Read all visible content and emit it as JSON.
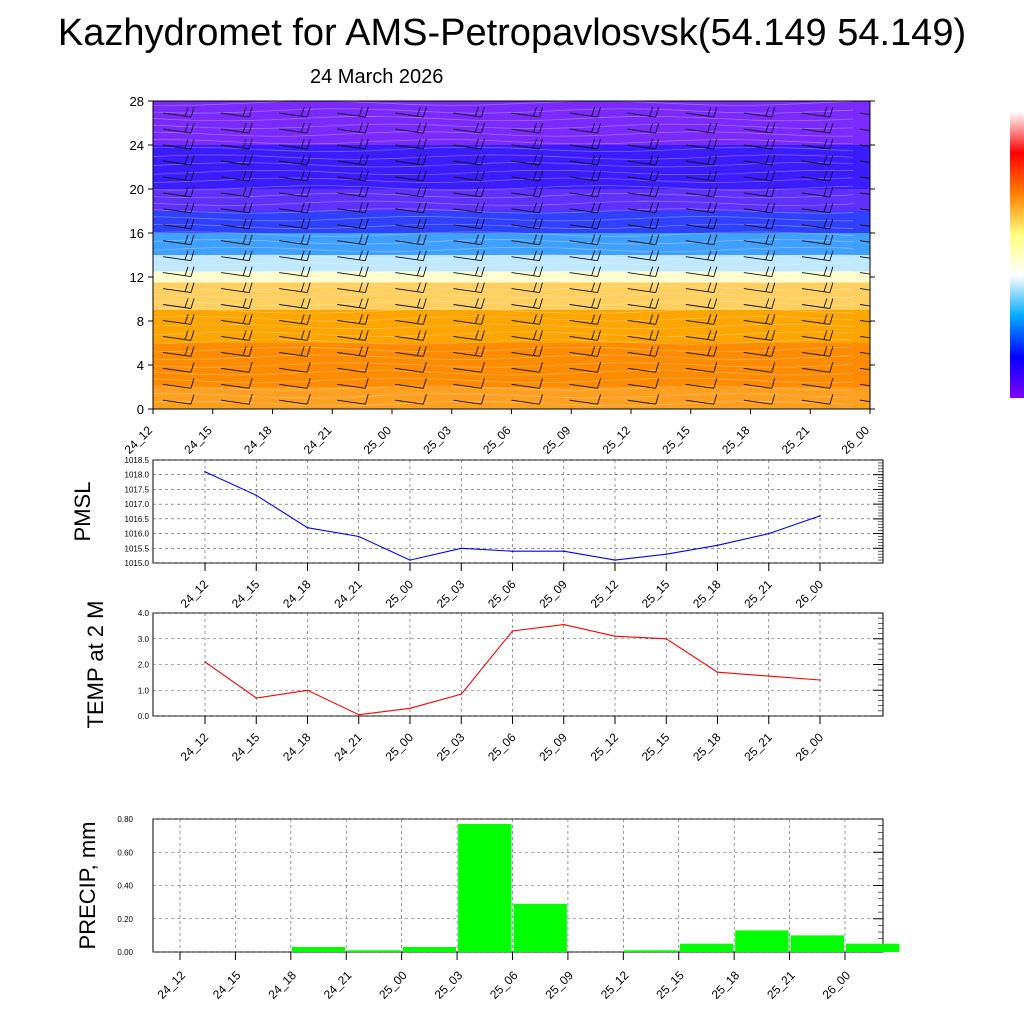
{
  "title": "Kazhydromet for AMS-Petropavlosvsk(54.149 54.149)",
  "subtitle": "24 March 2026",
  "chart_data": [
    {
      "type": "heatmap",
      "name": "meteogram-cross-section",
      "x": [
        "24_12",
        "24_15",
        "24_18",
        "24_21",
        "25_00",
        "25_03",
        "25_06",
        "25_09",
        "25_12",
        "25_15",
        "25_18",
        "25_21",
        "26_00"
      ],
      "y_ticks": [
        0,
        4,
        8,
        12,
        16,
        20,
        24,
        28
      ],
      "ylim": [
        0,
        28
      ],
      "colorbar": [
        "#ffffff",
        "#ff0000",
        "#ff8000",
        "#ffff80",
        "#ffffff",
        "#00aaff",
        "#0000ff",
        "#8000ff"
      ],
      "bands": [
        {
          "y0": 0,
          "y1": 2,
          "color": "#ffa020"
        },
        {
          "y0": 2,
          "y1": 6,
          "color": "#ff8c00"
        },
        {
          "y0": 6,
          "y1": 9,
          "color": "#ffa500"
        },
        {
          "y0": 9,
          "y1": 11.5,
          "color": "#ffd060"
        },
        {
          "y0": 11.5,
          "y1": 12.5,
          "color": "#ffffd0"
        },
        {
          "y0": 12.5,
          "y1": 14,
          "color": "#c0e8ff"
        },
        {
          "y0": 14,
          "y1": 16,
          "color": "#40a0ff"
        },
        {
          "y0": 16,
          "y1": 18,
          "color": "#3040ff"
        },
        {
          "y0": 18,
          "y1": 20,
          "color": "#6030ff"
        },
        {
          "y0": 20,
          "y1": 24,
          "color": "#3a1cff"
        },
        {
          "y0": 24,
          "y1": 28,
          "color": "#7a2aff"
        }
      ],
      "wind_barbs": true
    },
    {
      "type": "line",
      "name": "pmsl",
      "ylabel": "PMSL",
      "x": [
        "24_12",
        "24_15",
        "24_18",
        "24_21",
        "25_00",
        "25_03",
        "25_06",
        "25_09",
        "25_12",
        "25_15",
        "25_18",
        "25_21",
        "26_00"
      ],
      "values": [
        1018.1,
        1017.3,
        1016.2,
        1015.9,
        1015.1,
        1015.5,
        1015.4,
        1015.4,
        1015.1,
        1015.3,
        1015.6,
        1016.0,
        1016.6
      ],
      "ylim": [
        1015.0,
        1018.5
      ],
      "y_ticks": [
        "1015.0",
        "1015.5",
        "1016.0",
        "1016.5",
        "1017.0",
        "1017.5",
        "1018.0",
        "1018.5"
      ],
      "color": "#0000ff",
      "grid": true
    },
    {
      "type": "line",
      "name": "temp-2m",
      "ylabel": "TEMP at 2 M",
      "x": [
        "24_12",
        "24_15",
        "24_18",
        "24_21",
        "25_00",
        "25_03",
        "25_06",
        "25_09",
        "25_12",
        "25_15",
        "25_18",
        "25_21",
        "26_00"
      ],
      "values": [
        2.1,
        0.7,
        1.0,
        0.05,
        0.3,
        0.85,
        3.3,
        3.55,
        3.1,
        3.0,
        1.7,
        1.55,
        1.4
      ],
      "ylim": [
        0.0,
        4.0
      ],
      "y_ticks": [
        "0.0",
        "1.0",
        "2.0",
        "3.0",
        "4.0"
      ],
      "color": "#ff0000",
      "grid": true
    },
    {
      "type": "bar",
      "name": "precip",
      "ylabel": "PRECIP, mm",
      "x": [
        "24_12",
        "24_15",
        "24_18",
        "24_21",
        "25_00",
        "25_03",
        "25_06",
        "25_09",
        "25_12",
        "25_15",
        "25_18",
        "25_21",
        "26_00"
      ],
      "values": [
        0,
        0,
        0.03,
        0.01,
        0.03,
        0.77,
        0.29,
        0,
        0.01,
        0.05,
        0.13,
        0.1,
        0.05
      ],
      "ylim": [
        0,
        0.8
      ],
      "y_ticks": [
        "0.00",
        "0.20",
        "0.40",
        "0.60",
        "0.80"
      ],
      "color": "#00ff00",
      "grid": true
    }
  ]
}
